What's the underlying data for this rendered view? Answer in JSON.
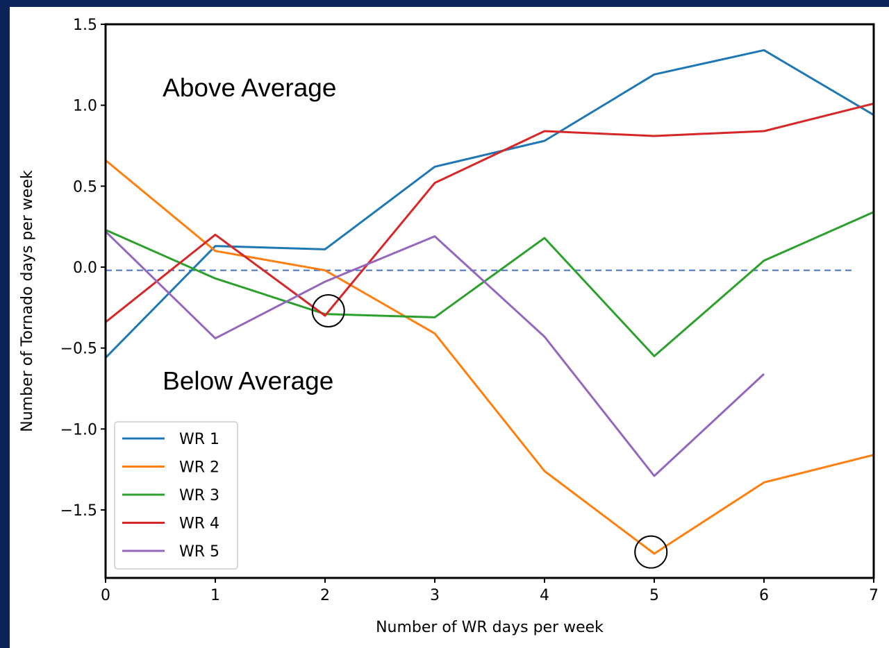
{
  "chart_data": {
    "type": "line",
    "x": [
      0,
      1,
      2,
      3,
      4,
      5,
      6,
      7
    ],
    "series": [
      {
        "name": "WR 1",
        "color": "#1f77b4",
        "values": [
          -0.56,
          0.13,
          0.11,
          0.62,
          0.78,
          1.19,
          1.34,
          0.94
        ]
      },
      {
        "name": "WR 2",
        "color": "#ff7f0e",
        "values": [
          0.66,
          0.1,
          -0.02,
          -0.41,
          -1.26,
          -1.77,
          -1.33,
          -1.16
        ]
      },
      {
        "name": "WR 3",
        "color": "#2ca02c",
        "values": [
          0.23,
          -0.07,
          -0.29,
          -0.31,
          0.18,
          -0.55,
          0.04,
          0.34
        ]
      },
      {
        "name": "WR 4",
        "color": "#d62728",
        "values": [
          -0.34,
          0.2,
          -0.3,
          0.52,
          0.84,
          0.81,
          0.84,
          1.01
        ]
      },
      {
        "name": "WR 5",
        "color": "#9467bd",
        "values": [
          0.22,
          -0.44,
          -0.09,
          0.19,
          -0.43,
          -1.29,
          -0.66,
          null
        ]
      }
    ],
    "xlabel": "Number of WR days per week",
    "ylabel": "Number of Tornado days per week",
    "annotations": [
      {
        "text": "Above Average",
        "x": 0.52,
        "y": 1.11
      },
      {
        "text": "Below Average",
        "x": 0.52,
        "y": -0.7
      }
    ],
    "reference_line": {
      "y": -0.02,
      "x": [
        0,
        6.83
      ],
      "color": "#4472c4",
      "style": "dashed"
    },
    "highlight_circles": [
      {
        "x": 2.03,
        "y": -0.27
      },
      {
        "x": 4.97,
        "y": -1.76
      }
    ],
    "xlim": [
      0,
      7
    ],
    "ylim": [
      -1.92,
      1.5
    ],
    "xticks": [
      0,
      1,
      2,
      3,
      4,
      5,
      6,
      7
    ],
    "yticks": [
      {
        "value": -1.5,
        "label": "−1.5"
      },
      {
        "value": -1,
        "label": "−1.0"
      },
      {
        "value": -0.5,
        "label": "−0.5"
      },
      {
        "value": 0,
        "label": "0.0"
      },
      0.5,
      {
        "value": 1,
        "label": "1.0"
      },
      1.5
    ],
    "legend": "lower left",
    "grid": false
  }
}
